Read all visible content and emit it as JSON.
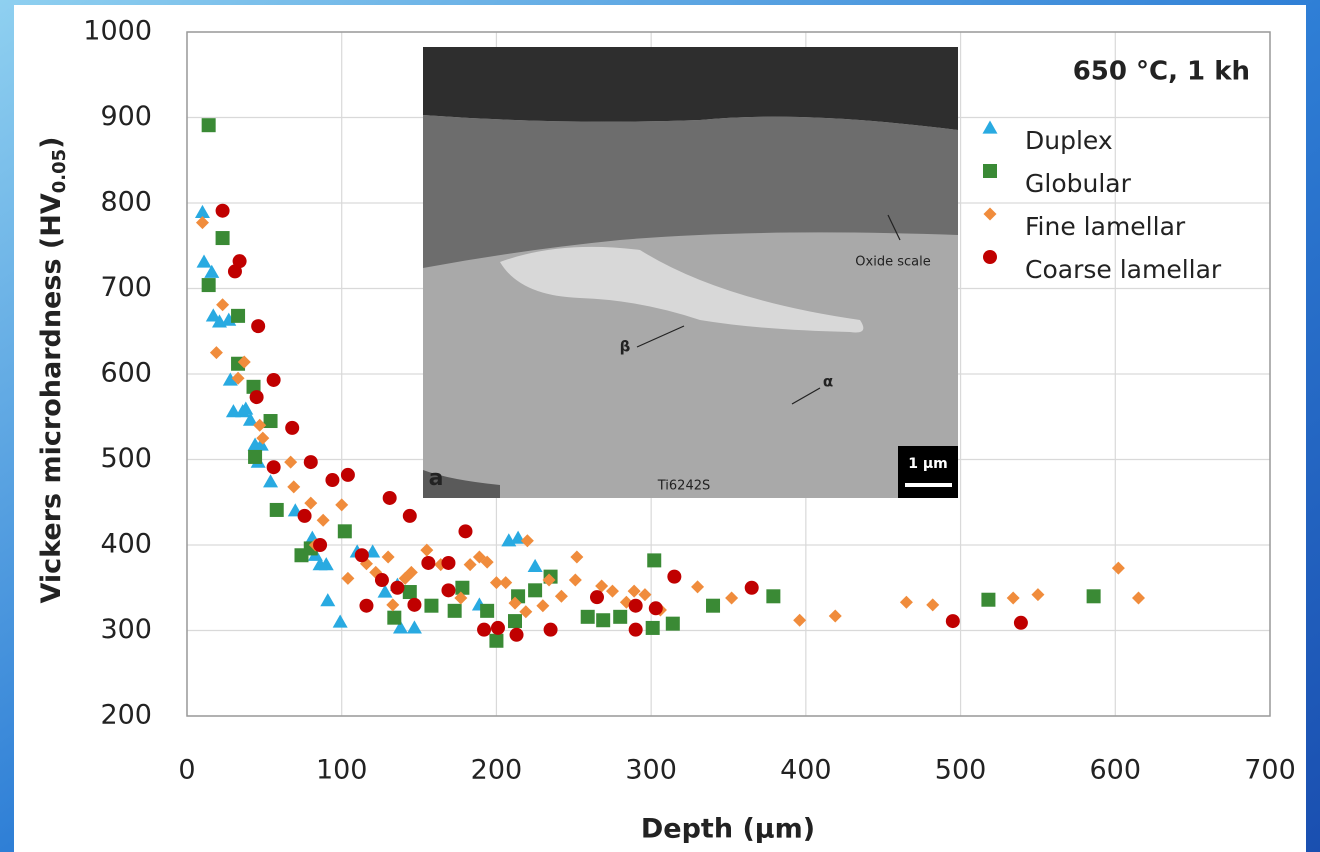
{
  "chart_data": {
    "type": "scatter",
    "annotation": "650 °C, 1 kh",
    "xlabel": "Depth (µm)",
    "ylabel": [
      "Vickers microhardness (HV",
      "0.05",
      ")"
    ],
    "xlim": [
      0,
      700
    ],
    "xticks": [
      0,
      100,
      200,
      300,
      400,
      500,
      600,
      700
    ],
    "ylim": [
      200,
      1000
    ],
    "yticks": [
      200,
      300,
      400,
      500,
      600,
      700,
      800,
      900,
      1000
    ],
    "grid": true,
    "legend": "upper right",
    "series": [
      {
        "name": "Duplex",
        "color": "#29aae1",
        "marker": "triangle",
        "x": [
          10,
          11,
          16,
          17,
          21,
          27,
          28,
          30,
          36,
          38,
          41,
          44,
          48,
          46,
          54,
          70,
          81,
          83,
          86,
          90,
          91,
          99,
          110,
          120,
          128,
          136,
          138,
          147,
          189,
          208,
          214,
          225
        ],
        "values": [
          789,
          731,
          719,
          668,
          661,
          663,
          593,
          556,
          556,
          559,
          546,
          517,
          517,
          497,
          474,
          440,
          408,
          388,
          377,
          377,
          335,
          310,
          392,
          392,
          345,
          353,
          303,
          303,
          330,
          405,
          408,
          375
        ]
      },
      {
        "name": "Globular",
        "color": "#3a8a35",
        "marker": "square",
        "x": [
          14,
          23,
          14,
          33,
          33,
          43,
          44,
          54,
          58,
          74,
          80,
          102,
          134,
          144,
          158,
          178,
          173,
          194,
          200,
          212,
          214,
          225,
          235,
          259,
          269,
          280,
          302,
          301,
          314,
          340,
          379,
          518,
          586
        ],
        "values": [
          891,
          759,
          704,
          668,
          612,
          585,
          503,
          545,
          441,
          388,
          396,
          416,
          315,
          345,
          329,
          350,
          323,
          323,
          288,
          311,
          340,
          347,
          363,
          316,
          312,
          316,
          382,
          303,
          308,
          329,
          340,
          336,
          340
        ]
      },
      {
        "name": "Fine lamellar",
        "color": "#f08c3c",
        "marker": "diamond",
        "x": [
          10,
          19,
          23,
          33,
          37,
          47,
          49,
          67,
          69,
          80,
          88,
          100,
          83,
          104,
          116,
          122,
          130,
          133,
          141,
          145,
          155,
          164,
          177,
          183,
          189,
          194,
          200,
          206,
          212,
          219,
          220,
          230,
          234,
          242,
          251,
          252,
          268,
          275,
          284,
          289,
          296,
          306,
          330,
          352,
          396,
          419,
          465,
          482,
          534,
          550,
          602,
          615
        ],
        "values": [
          777,
          625,
          681,
          595,
          614,
          540,
          525,
          497,
          468,
          449,
          429,
          447,
          400,
          361,
          378,
          368,
          386,
          330,
          361,
          368,
          394,
          377,
          338,
          377,
          386,
          380,
          356,
          356,
          332,
          322,
          405,
          329,
          359,
          340,
          359,
          386,
          352,
          346,
          333,
          346,
          342,
          324,
          351,
          338,
          312,
          317,
          333,
          330,
          338,
          342,
          373,
          338
        ]
      },
      {
        "name": "Coarse lamellar",
        "color": "#c00000",
        "marker": "circle",
        "x": [
          23,
          31,
          34,
          46,
          56,
          45,
          68,
          56,
          80,
          76,
          94,
          104,
          86,
          113,
          116,
          126,
          131,
          136,
          144,
          147,
          156,
          169,
          169,
          180,
          192,
          201,
          213,
          235,
          265,
          290,
          290,
          303,
          315,
          365,
          495,
          539
        ],
        "values": [
          791,
          720,
          732,
          656,
          593,
          573,
          537,
          491,
          497,
          434,
          476,
          482,
          400,
          388,
          329,
          359,
          455,
          350,
          434,
          330,
          379,
          379,
          347,
          416,
          301,
          303,
          295,
          301,
          339,
          329,
          301,
          326,
          363,
          350,
          311,
          309
        ]
      }
    ]
  },
  "inset": {
    "labels": {
      "oxide": "Oxide scale",
      "beta": "β",
      "alpha": "α",
      "panel": "a",
      "scale": "1 µm",
      "alloy": "Ti6242S"
    }
  }
}
